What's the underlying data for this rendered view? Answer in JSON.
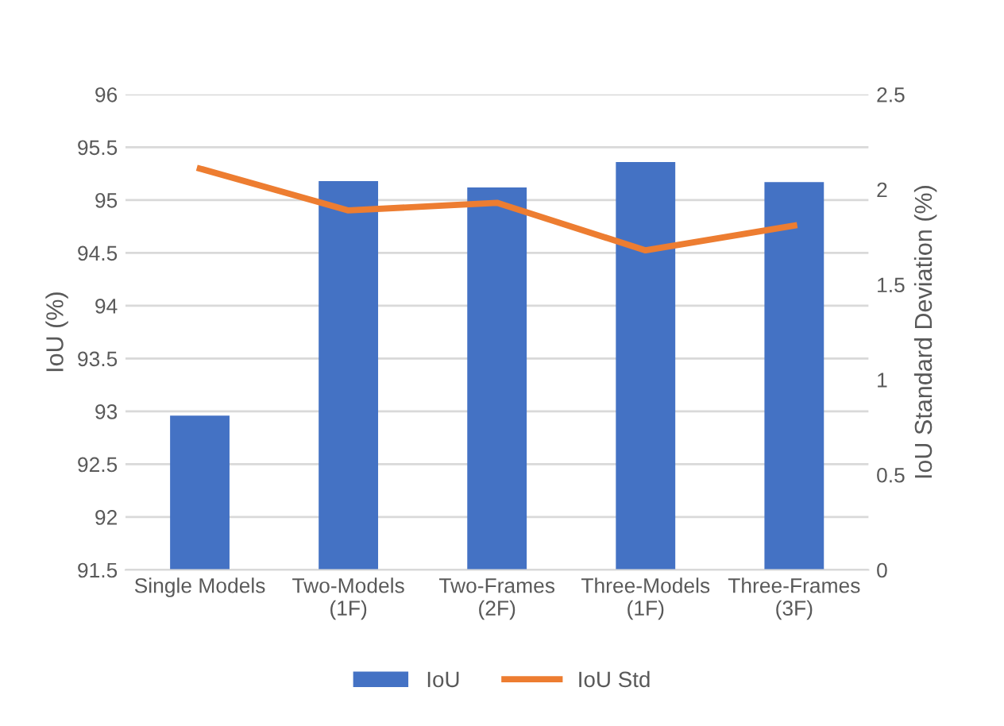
{
  "chart_data": {
    "type": "bar",
    "ylabel": "IoU (%)",
    "y2label": "IoU Standard Deviation (%)",
    "categories": [
      "Single Models",
      "Two-Models\n(1F)",
      "Two-Frames\n(2F)",
      "Three-Models\n(1F)",
      "Three-Frames\n(3F)"
    ],
    "series": [
      {
        "name": "IoU",
        "color": "#4472c4",
        "values": [
          92.96,
          95.18,
          95.12,
          95.36,
          95.17
        ]
      },
      {
        "name": "IoU Std",
        "type": "line",
        "axis": "y2",
        "color": "#ed7d31",
        "values": [
          2.11,
          1.89,
          1.93,
          1.68,
          1.81
        ]
      }
    ],
    "ylim": [
      91.5,
      96
    ],
    "yticks": [
      91.5,
      92,
      92.5,
      93,
      93.5,
      94,
      94.5,
      95,
      95.5,
      96
    ],
    "y2lim": [
      0,
      2.5
    ],
    "y2ticks": [
      0,
      0.5,
      1,
      1.5,
      2,
      2.5
    ],
    "grid": "y",
    "legend": "bottom",
    "marker": "none",
    "line_style": "solid"
  }
}
